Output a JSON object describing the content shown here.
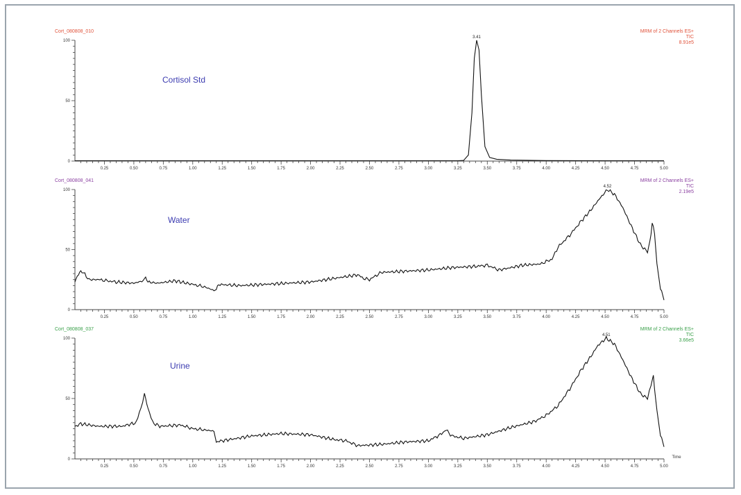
{
  "chart_data": [
    {
      "type": "line",
      "file_label": "Cort_080808_010",
      "channel_label": [
        "MRM of 2 Channels ES+",
        "TIC",
        "8.91e5"
      ],
      "sample_label": "Cortisol Std",
      "label_color": "#e0523a",
      "y_ticks": [
        "100",
        "50",
        "0"
      ],
      "y_ticks_values": [
        100,
        50,
        0
      ],
      "ylim": [
        0,
        100
      ],
      "xlim": [
        0,
        5.0
      ],
      "x_ticks": [
        "0.25",
        "0.50",
        "0.75",
        "1.00",
        "1.25",
        "1.50",
        "1.75",
        "2.00",
        "2.25",
        "2.50",
        "2.75",
        "3.00",
        "3.25",
        "3.50",
        "3.75",
        "4.00",
        "4.25",
        "4.50",
        "4.75",
        "5.00"
      ],
      "x_ticks_values": [
        0.25,
        0.5,
        0.75,
        1.0,
        1.25,
        1.5,
        1.75,
        2.0,
        2.25,
        2.5,
        2.75,
        3.0,
        3.25,
        3.5,
        3.75,
        4.0,
        4.25,
        4.5,
        4.75,
        5.0
      ],
      "peak_label": "3.41",
      "peak_x": 3.41,
      "x": [
        0.0,
        3.25,
        3.3,
        3.34,
        3.37,
        3.39,
        3.41,
        3.43,
        3.45,
        3.48,
        3.52,
        3.58,
        3.7,
        4.0,
        4.5,
        5.0
      ],
      "y": [
        0.3,
        0.3,
        0.6,
        5,
        40,
        85,
        100,
        92,
        55,
        12,
        3,
        1.5,
        0.8,
        0.4,
        0.3,
        0.3
      ]
    },
    {
      "type": "line",
      "file_label": "Cort_080808_041",
      "channel_label": [
        "MRM of 2 Channels ES+",
        "TIC",
        "2.19e5"
      ],
      "sample_label": "Water",
      "label_color": "#8a3fa0",
      "y_ticks": [
        "100",
        "50",
        "0"
      ],
      "y_ticks_values": [
        100,
        50,
        0
      ],
      "ylim": [
        0,
        100
      ],
      "xlim": [
        0,
        5.0
      ],
      "x_ticks": [
        "0.25",
        "0.50",
        "0.75",
        "1.00",
        "1.25",
        "1.50",
        "1.75",
        "2.00",
        "2.25",
        "2.50",
        "2.75",
        "3.00",
        "3.25",
        "3.50",
        "3.75",
        "4.00",
        "4.25",
        "4.50",
        "4.75",
        "5.00"
      ],
      "x_ticks_values": [
        0.25,
        0.5,
        0.75,
        1.0,
        1.25,
        1.5,
        1.75,
        2.0,
        2.25,
        2.5,
        2.75,
        3.0,
        3.25,
        3.5,
        3.75,
        4.0,
        4.25,
        4.5,
        4.75,
        5.0
      ],
      "peak_label": "4.52",
      "peak_x": 4.52,
      "x": [
        0.0,
        0.03,
        0.06,
        0.12,
        0.2,
        0.35,
        0.5,
        0.58,
        0.6,
        0.62,
        0.7,
        0.85,
        1.0,
        1.1,
        1.18,
        1.2,
        1.22,
        1.4,
        1.6,
        1.8,
        2.0,
        2.2,
        2.4,
        2.45,
        2.5,
        2.55,
        2.6,
        2.8,
        3.0,
        3.2,
        3.4,
        3.5,
        3.6,
        3.8,
        3.95,
        4.05,
        4.1,
        4.2,
        4.3,
        4.38,
        4.45,
        4.52,
        4.58,
        4.65,
        4.72,
        4.8,
        4.86,
        4.88,
        4.9,
        4.92,
        4.94,
        4.97,
        5.0
      ],
      "y": [
        23,
        30,
        32,
        25,
        25,
        23,
        22,
        24,
        27,
        23,
        22,
        24,
        21,
        19,
        16,
        17,
        21,
        20,
        21,
        22,
        23,
        26,
        29,
        26,
        25,
        28,
        31,
        32,
        33,
        35,
        36,
        37,
        33,
        37,
        38,
        42,
        52,
        62,
        74,
        83,
        92,
        100,
        96,
        85,
        70,
        54,
        48,
        56,
        72,
        64,
        38,
        18,
        8
      ]
    },
    {
      "type": "line",
      "file_label": "Cort_080808_037",
      "channel_label": [
        "MRM of 2 Channels ES+",
        "TIC",
        "3.66e5"
      ],
      "sample_label": "Urine",
      "label_color": "#3aa04a",
      "y_ticks": [
        "100",
        "50",
        "0"
      ],
      "y_ticks_values": [
        100,
        50,
        0
      ],
      "ylim": [
        0,
        100
      ],
      "xlim": [
        0,
        5.0
      ],
      "x_ticks": [
        "0.25",
        "0.50",
        "0.75",
        "1.00",
        "1.25",
        "1.50",
        "1.75",
        "2.00",
        "2.25",
        "2.50",
        "2.75",
        "3.00",
        "3.25",
        "3.50",
        "3.75",
        "4.00",
        "4.25",
        "4.50",
        "4.75",
        "5.00"
      ],
      "x_ticks_values": [
        0.25,
        0.5,
        0.75,
        1.0,
        1.25,
        1.5,
        1.75,
        2.0,
        2.25,
        2.5,
        2.75,
        3.0,
        3.25,
        3.5,
        3.75,
        4.0,
        4.25,
        4.5,
        4.75,
        5.0
      ],
      "peak_label": "4.51",
      "peak_x": 4.51,
      "x_axis_unit": "Time",
      "x": [
        0.0,
        0.05,
        0.2,
        0.4,
        0.52,
        0.56,
        0.59,
        0.62,
        0.66,
        0.72,
        0.9,
        1.0,
        1.1,
        1.18,
        1.2,
        1.25,
        1.5,
        1.75,
        2.0,
        2.2,
        2.3,
        2.4,
        2.6,
        2.8,
        3.0,
        3.1,
        3.15,
        3.2,
        3.3,
        3.5,
        3.7,
        3.9,
        4.0,
        4.1,
        4.2,
        4.3,
        4.38,
        4.44,
        4.51,
        4.58,
        4.65,
        4.72,
        4.8,
        4.86,
        4.89,
        4.91,
        4.94,
        4.97,
        5.0
      ],
      "y": [
        27,
        29,
        27,
        27,
        30,
        42,
        54,
        42,
        30,
        27,
        28,
        25,
        24,
        23,
        14,
        15,
        19,
        21,
        20,
        16,
        15,
        11,
        12,
        14,
        15,
        20,
        24,
        19,
        17,
        20,
        26,
        31,
        36,
        44,
        58,
        74,
        85,
        94,
        100,
        95,
        82,
        68,
        54,
        50,
        62,
        68,
        40,
        20,
        10
      ]
    }
  ]
}
